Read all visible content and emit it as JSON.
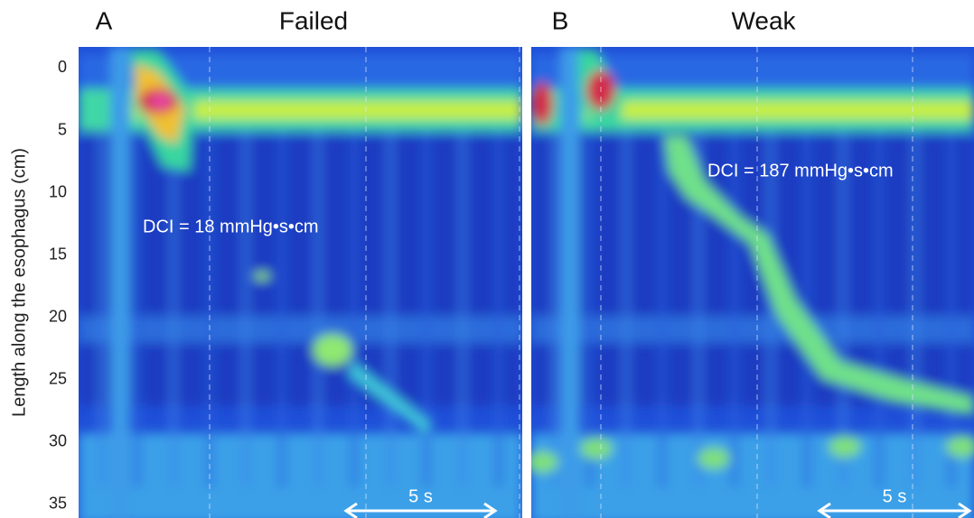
{
  "chart_data": [
    {
      "type": "heatmap",
      "label": "A",
      "title": "Failed",
      "annotation": "DCI = 18 mmHg•s•cm",
      "scale_label": "5 s",
      "ylabel": "Length along the esophagus (cm)",
      "ylim": [
        -1.7,
        36.1
      ],
      "yticks": [
        0,
        5,
        10,
        15,
        20,
        25,
        30,
        35
      ]
    },
    {
      "type": "heatmap",
      "label": "B",
      "title": "Weak",
      "annotation": "DCI = 187 mmHg•s•cm",
      "scale_label": "5 s"
    }
  ]
}
